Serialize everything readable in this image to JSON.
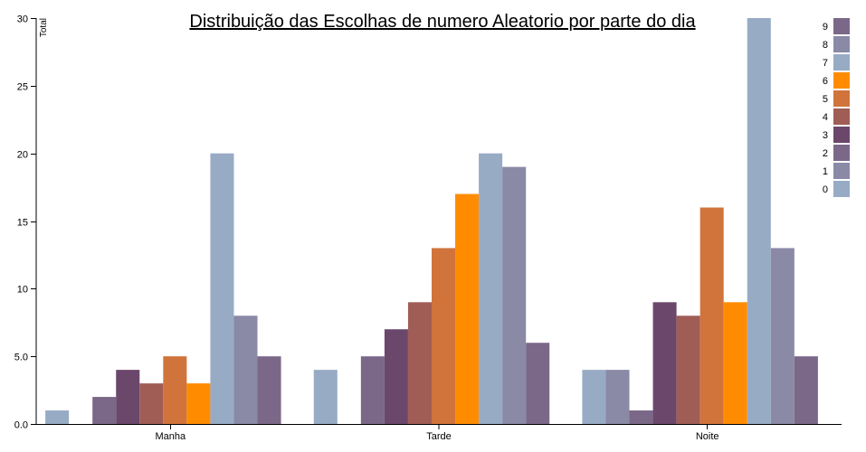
{
  "chart_data": {
    "type": "bar",
    "title": "Distribuição das Escolhas de numero Aleatorio por parte do dia",
    "xlabel": "",
    "ylabel": "Total",
    "ylim": [
      0,
      30
    ],
    "yticks": [
      "0.0",
      "5.0",
      "10",
      "15",
      "20",
      "25",
      "30"
    ],
    "categories": [
      "Manha",
      "Tarde",
      "Noite"
    ],
    "series": [
      {
        "name": "0",
        "color": "#98abc5",
        "values": [
          1,
          4,
          4
        ]
      },
      {
        "name": "1",
        "color": "#8a89a6",
        "values": [
          0,
          0,
          4
        ]
      },
      {
        "name": "2",
        "color": "#7b6888",
        "values": [
          2,
          5,
          1
        ]
      },
      {
        "name": "3",
        "color": "#6b486b",
        "values": [
          4,
          7,
          9
        ]
      },
      {
        "name": "4",
        "color": "#a05d56",
        "values": [
          3,
          9,
          8
        ]
      },
      {
        "name": "5",
        "color": "#d0743c",
        "values": [
          5,
          13,
          16
        ]
      },
      {
        "name": "6",
        "color": "#ff8c00",
        "values": [
          3,
          17,
          9
        ]
      },
      {
        "name": "7",
        "color": "#98abc5",
        "values": [
          20,
          20,
          30
        ]
      },
      {
        "name": "8",
        "color": "#8a89a6",
        "values": [
          8,
          19,
          13
        ]
      },
      {
        "name": "9",
        "color": "#7b6888",
        "values": [
          5,
          6,
          5
        ]
      }
    ],
    "legend_position": "top-right",
    "grid": false
  }
}
